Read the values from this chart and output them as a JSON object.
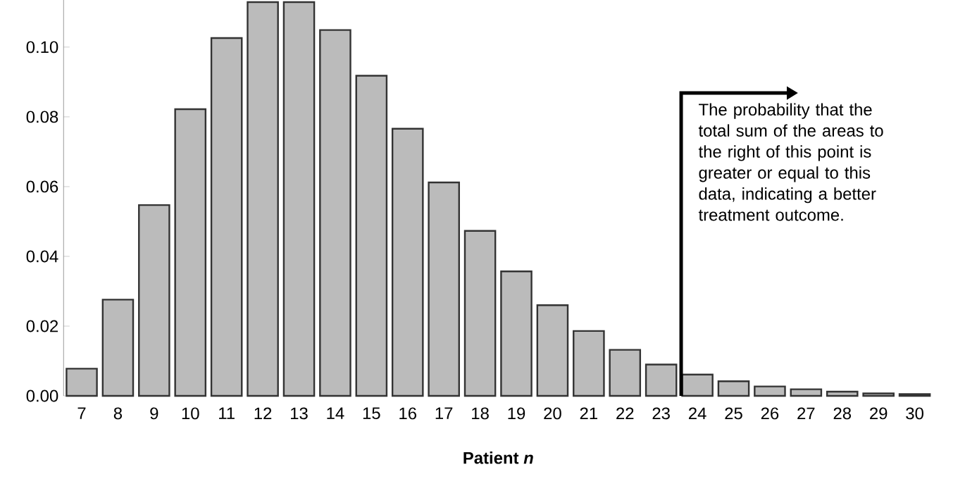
{
  "chart_data": {
    "type": "bar",
    "xlabel": "Patient *n*",
    "categories": [
      "7",
      "8",
      "9",
      "10",
      "11",
      "12",
      "13",
      "14",
      "15",
      "16",
      "17",
      "18",
      "19",
      "20",
      "21",
      "22",
      "23",
      "24",
      "25",
      "26",
      "27",
      "28",
      "29",
      "30"
    ],
    "values": [
      0.0078,
      0.0276,
      0.0547,
      0.0822,
      0.1026,
      0.1129,
      0.1129,
      0.1049,
      0.0918,
      0.0766,
      0.0612,
      0.0473,
      0.0357,
      0.026,
      0.0186,
      0.0132,
      0.009,
      0.0061,
      0.0042,
      0.0027,
      0.0019,
      0.0012,
      0.0007,
      0.0005
    ],
    "color": "#bbbbbb",
    "ylim": [
      0,
      0.1135
    ],
    "yticks": [
      {
        "value": 0,
        "label": "0.00"
      },
      {
        "value": 0.02,
        "label": "0.02"
      },
      {
        "value": 0.04,
        "label": "0.04"
      },
      {
        "value": 0.06,
        "label": "0.06"
      },
      {
        "value": 0.08,
        "label": "0.08"
      },
      {
        "value": 0.1,
        "label": "0.10"
      }
    ],
    "annotations": [
      "The probability that the total sum of the areas to the right of this point is greater or equal to this data, indicating a better treatment outcome."
    ],
    "grid": false
  }
}
